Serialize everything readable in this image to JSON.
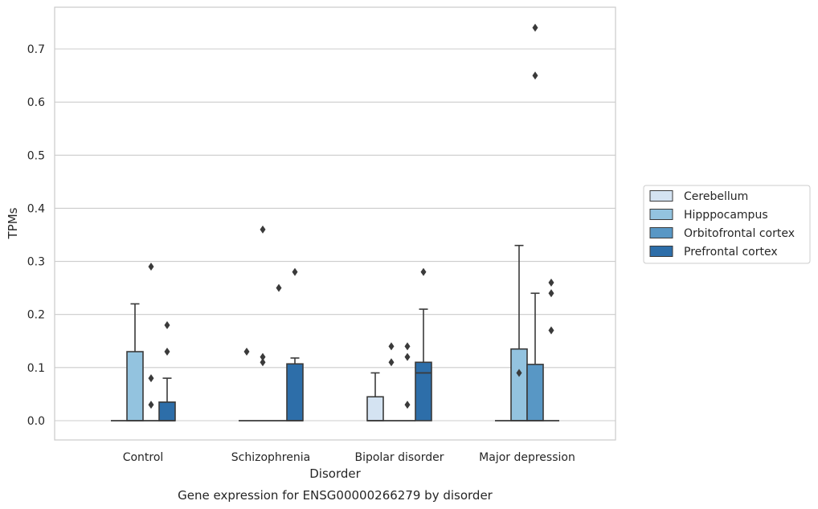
{
  "chart_data": {
    "type": "box",
    "title": "",
    "caption": "Gene expression for ENSG00000266279 by disorder",
    "xlabel": "Disorder",
    "ylabel": "TPMs",
    "ylim": [
      -0.037,
      0.78
    ],
    "yticks": [
      0.0,
      0.1,
      0.2,
      0.3,
      0.4,
      0.5,
      0.6,
      0.7
    ],
    "ytick_labels": [
      "0.0",
      "0.1",
      "0.2",
      "0.3",
      "0.4",
      "0.5",
      "0.6",
      "0.7"
    ],
    "grid": "horizontal",
    "legend_placement": "right, outside",
    "categories": [
      "Control",
      "Schizophrenia",
      "Bipolar disorder",
      "Major depression"
    ],
    "series": [
      {
        "name": "Cerebellum",
        "color": "#d4e3f2",
        "boxes": [
          {
            "q1": 0,
            "median": 0,
            "q3": 0,
            "whisker_low": 0,
            "whisker_high": 0,
            "outliers": []
          },
          {
            "q1": 0,
            "median": 0,
            "q3": 0,
            "whisker_low": 0,
            "whisker_high": 0,
            "outliers": [
              0.13
            ]
          },
          {
            "q1": 0,
            "median": 0,
            "q3": 0.045,
            "whisker_low": 0,
            "whisker_high": 0.09,
            "outliers": []
          },
          {
            "q1": 0,
            "median": 0,
            "q3": 0,
            "whisker_low": 0,
            "whisker_high": 0,
            "outliers": []
          }
        ]
      },
      {
        "name": "Hipppocampus",
        "color": "#93c3df",
        "boxes": [
          {
            "q1": 0,
            "median": 0,
            "q3": 0.13,
            "whisker_low": 0,
            "whisker_high": 0.22,
            "outliers": []
          },
          {
            "q1": 0,
            "median": 0,
            "q3": 0,
            "whisker_low": 0,
            "whisker_high": 0,
            "outliers": [
              0.12,
              0.11,
              0.36
            ]
          },
          {
            "q1": 0,
            "median": 0,
            "q3": 0,
            "whisker_low": 0,
            "whisker_high": 0,
            "outliers": [
              0.14,
              0.11
            ]
          },
          {
            "q1": 0,
            "median": 0,
            "q3": 0.135,
            "whisker_low": 0,
            "whisker_high": 0.33,
            "outliers": [
              0.09
            ]
          }
        ]
      },
      {
        "name": "Orbitofrontal cortex",
        "color": "#5897c5",
        "boxes": [
          {
            "q1": 0,
            "median": 0,
            "q3": 0,
            "whisker_low": 0,
            "whisker_high": 0,
            "outliers": [
              0.29,
              0.08,
              0.03
            ]
          },
          {
            "q1": 0,
            "median": 0,
            "q3": 0,
            "whisker_low": 0,
            "whisker_high": 0,
            "outliers": [
              0.25
            ]
          },
          {
            "q1": 0,
            "median": 0,
            "q3": 0,
            "whisker_low": 0,
            "whisker_high": 0,
            "outliers": [
              0.14,
              0.12,
              0.03
            ]
          },
          {
            "q1": 0,
            "median": 0,
            "q3": 0.106,
            "whisker_low": 0,
            "whisker_high": 0.24,
            "outliers": [
              0.65,
              0.74
            ]
          }
        ]
      },
      {
        "name": "Prefrontal cortex",
        "color": "#2d6ea9",
        "boxes": [
          {
            "q1": 0,
            "median": 0,
            "q3": 0.035,
            "whisker_low": 0,
            "whisker_high": 0.08,
            "outliers": [
              0.18,
              0.13
            ]
          },
          {
            "q1": 0,
            "median": 0,
            "q3": 0.107,
            "whisker_low": 0,
            "whisker_high": 0.118,
            "outliers": [
              0.28
            ]
          },
          {
            "q1": 0,
            "median": 0.09,
            "q3": 0.11,
            "whisker_low": 0,
            "whisker_high": 0.21,
            "outliers": [
              0.28
            ]
          },
          {
            "q1": 0,
            "median": 0,
            "q3": 0,
            "whisker_low": 0,
            "whisker_high": 0,
            "outliers": [
              0.26,
              0.24,
              0.17
            ]
          }
        ]
      }
    ]
  }
}
